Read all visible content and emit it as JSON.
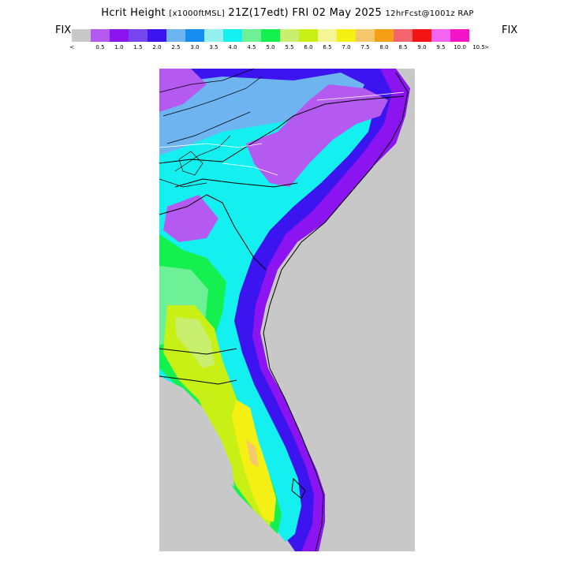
{
  "header": {
    "title_main": "Hcrit Height",
    "title_units": "[x1000ftMSL]",
    "title_valid": "21Z(17edt) FRI 02 May 2025",
    "title_run": "12hrFcst@1001z RAP"
  },
  "legend": {
    "fix_left": "FIX",
    "fix_right": "FIX",
    "colors": [
      "#c8c8c8",
      "#b45af0",
      "#8c14f0",
      "#7846f0",
      "#3c14f0",
      "#6eb4f0",
      "#148cf0",
      "#96f0f0",
      "#14f0f0",
      "#6ef096",
      "#14f050",
      "#c8f06e",
      "#c8f014",
      "#f5f596",
      "#f5f014",
      "#f5c86e",
      "#f5a014",
      "#f5646e",
      "#f51414",
      "#f564f0",
      "#f514c8"
    ],
    "tick_labels": [
      "<",
      "0.5",
      "1.0",
      "1.5",
      "2.0",
      "2.5",
      "3.0",
      "3.5",
      "4.0",
      "4.5",
      "5.0",
      "5.5",
      "6.0",
      "6.5",
      "7.0",
      "7.5",
      "8.0",
      "8.5",
      "9.0",
      "9.5",
      "10.0",
      "10.5",
      ">"
    ]
  }
}
